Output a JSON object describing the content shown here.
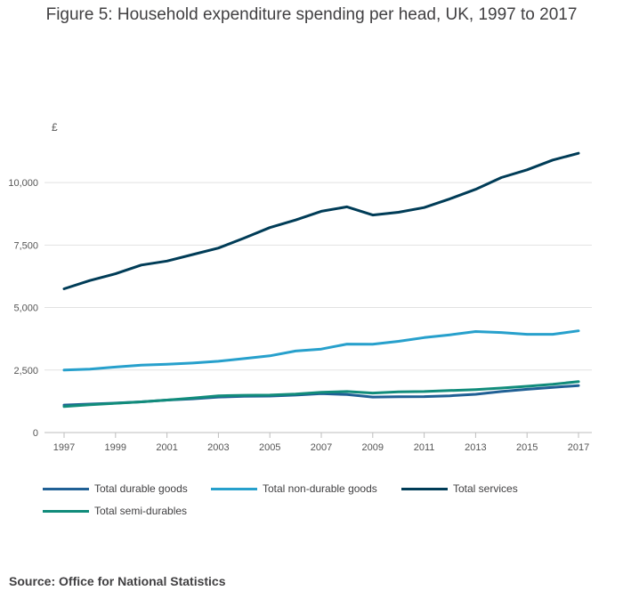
{
  "title": "Figure 5: Household expenditure spending per head, UK, 1997 to 2017",
  "source": "Source: Office for National Statistics",
  "chart_data": {
    "type": "line",
    "title": "Figure 5: Household expenditure spending per head, UK, 1997 to 2017",
    "ylabel": "£",
    "xlabel": "",
    "ylim": [
      0,
      11250
    ],
    "yticks": [
      0,
      2500,
      5000,
      7500,
      10000
    ],
    "ytick_labels": [
      "0",
      "2,500",
      "5,000",
      "7,500",
      "10,000"
    ],
    "xlim": [
      1997,
      2017
    ],
    "xticks": [
      1997,
      1999,
      2001,
      2003,
      2005,
      2007,
      2009,
      2011,
      2013,
      2015,
      2017
    ],
    "xtick_labels": [
      "1997",
      "1999",
      "2001",
      "2003",
      "2005",
      "2007",
      "2009",
      "2011",
      "2013",
      "2015",
      "2017"
    ],
    "grid": true,
    "legend_position": "bottom",
    "x": [
      1997,
      1998,
      1999,
      2000,
      2001,
      2002,
      2003,
      2004,
      2005,
      2006,
      2007,
      2008,
      2009,
      2010,
      2011,
      2012,
      2013,
      2014,
      2015,
      2016,
      2017
    ],
    "series": [
      {
        "name": "Total durable goods",
        "color": "#206095",
        "values": [
          1100,
          1140,
          1180,
          1230,
          1300,
          1350,
          1420,
          1450,
          1460,
          1500,
          1560,
          1520,
          1420,
          1430,
          1440,
          1470,
          1530,
          1640,
          1730,
          1810,
          1880
        ]
      },
      {
        "name": "Total non-durable goods",
        "color": "#27a0cc",
        "values": [
          2500,
          2540,
          2620,
          2700,
          2730,
          2780,
          2850,
          2960,
          3070,
          3260,
          3340,
          3540,
          3530,
          3650,
          3800,
          3910,
          4040,
          4000,
          3930,
          3930,
          4070
        ]
      },
      {
        "name": "Total services",
        "color": "#003c57",
        "values": [
          5750,
          6080,
          6350,
          6700,
          6860,
          7120,
          7380,
          7780,
          8200,
          8500,
          8850,
          9030,
          8700,
          8810,
          9000,
          9350,
          9730,
          10200,
          10510,
          10900,
          11170
        ]
      },
      {
        "name": "Total semi-durables",
        "color": "#118c7b",
        "values": [
          1040,
          1110,
          1170,
          1230,
          1300,
          1380,
          1470,
          1490,
          1500,
          1540,
          1610,
          1640,
          1580,
          1630,
          1640,
          1680,
          1720,
          1780,
          1850,
          1930,
          2040
        ]
      }
    ]
  }
}
